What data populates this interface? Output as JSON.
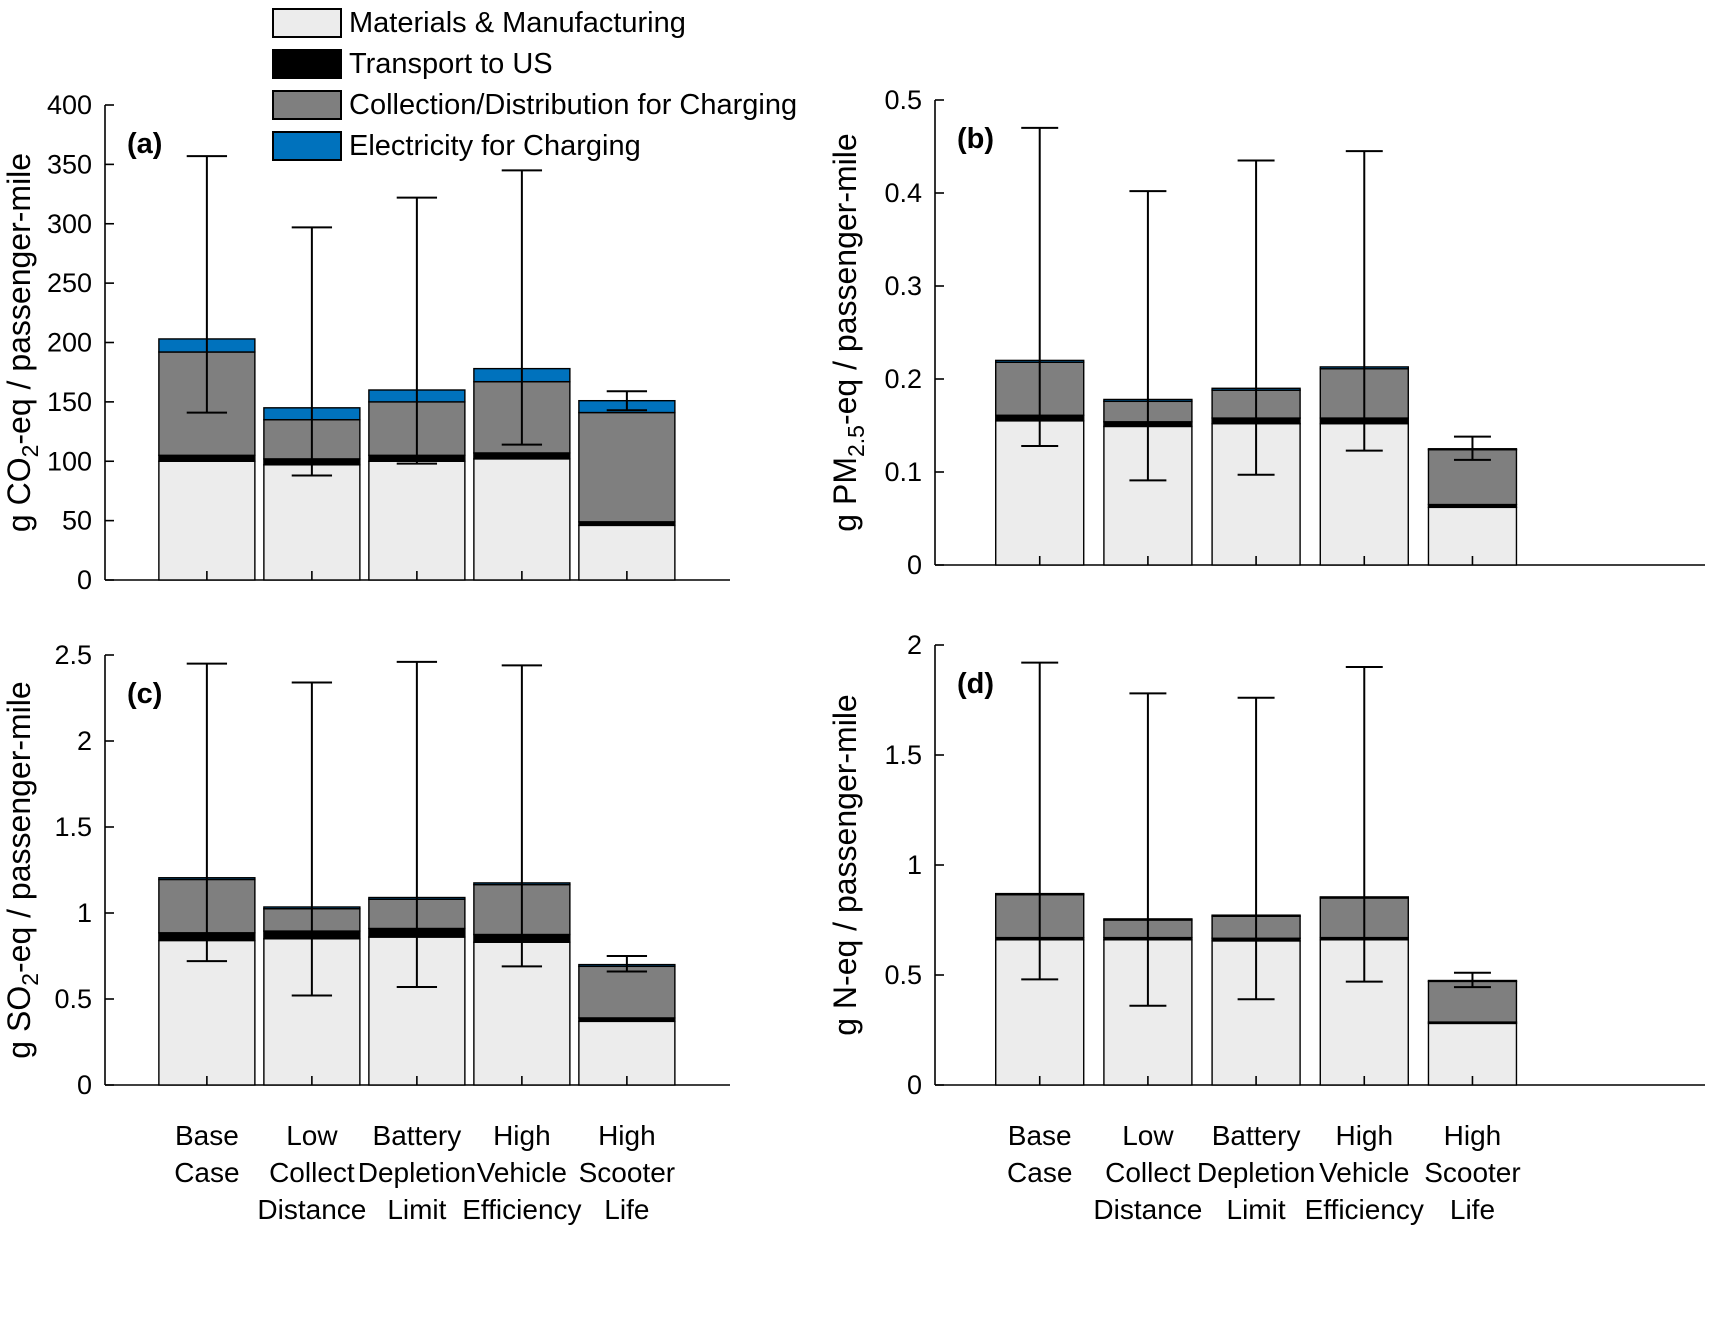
{
  "figure": {
    "background": "#ffffff",
    "axis_color": "#000000",
    "text_color": "#000000"
  },
  "legend": {
    "position": "top-left",
    "items": [
      {
        "name": "materials",
        "label": "Materials & Manufacturing",
        "color": "#ececec"
      },
      {
        "name": "transport",
        "label": "Transport to US",
        "color": "#000000"
      },
      {
        "name": "collection",
        "label": "Collection/Distribution for Charging",
        "color": "#7f7f7f"
      },
      {
        "name": "electricity",
        "label": "Electricity for Charging",
        "color": "#0072bd"
      }
    ]
  },
  "category_labels": [
    [
      "Base",
      "Case"
    ],
    [
      "Low",
      "Collect",
      "Distance"
    ],
    [
      "Battery",
      "Depletion",
      "Limit"
    ],
    [
      "High",
      "Vehicle",
      "Efficiency"
    ],
    [
      "High",
      "Scooter",
      "Life"
    ]
  ],
  "chart_data": [
    {
      "type": "bar",
      "stacked": true,
      "panel_label": "(a)",
      "ylabel_text": "g CO2-eq / passenger-mile",
      "ylabel": {
        "pre": "g CO",
        "sub": "2",
        "post": "-eq / passenger-mile"
      },
      "ylim": [
        0,
        400
      ],
      "grid": false,
      "yticks": [
        {
          "v": 0,
          "label": "0"
        },
        {
          "v": 50,
          "label": "50"
        },
        {
          "v": 100,
          "label": "100"
        },
        {
          "v": 150,
          "label": "150"
        },
        {
          "v": 200,
          "label": "200"
        },
        {
          "v": 250,
          "label": "250"
        },
        {
          "v": 300,
          "label": "300"
        },
        {
          "v": 350,
          "label": "350"
        },
        {
          "v": 400,
          "label": "400"
        }
      ],
      "categories": [
        "Base Case",
        "Low Collect Distance",
        "Battery Depletion Limit",
        "High Vehicle Efficiency",
        "High Scooter Life"
      ],
      "series": [
        {
          "name": "Materials & Manufacturing",
          "values": [
            100,
            97,
            100,
            102,
            46
          ]
        },
        {
          "name": "Transport to US",
          "values": [
            5,
            5,
            5,
            5,
            3
          ]
        },
        {
          "name": "Collection/Distribution for Charging",
          "values": [
            87,
            33,
            45,
            60,
            92
          ]
        },
        {
          "name": "Electricity for Charging",
          "values": [
            11,
            10,
            10,
            11,
            10
          ]
        }
      ],
      "totals": [
        203,
        145,
        160,
        178,
        151
      ],
      "error_bars": {
        "low": [
          141,
          88,
          98,
          114,
          143
        ],
        "high": [
          357,
          297,
          322,
          345,
          159
        ]
      }
    },
    {
      "type": "bar",
      "stacked": true,
      "panel_label": "(b)",
      "ylabel_text": "g PM2.5-eq / passenger-mile",
      "ylabel": {
        "pre": "g PM",
        "sub": "2.5",
        "post": "-eq / passenger-mile"
      },
      "ylim": [
        0,
        0.5
      ],
      "grid": false,
      "yticks": [
        {
          "v": 0,
          "label": "0"
        },
        {
          "v": 0.1,
          "label": "0.1"
        },
        {
          "v": 0.2,
          "label": "0.2"
        },
        {
          "v": 0.3,
          "label": "0.3"
        },
        {
          "v": 0.4,
          "label": "0.4"
        },
        {
          "v": 0.5,
          "label": "0.5"
        }
      ],
      "categories": [
        "Base Case",
        "Low Collect Distance",
        "Battery Depletion Limit",
        "High Vehicle Efficiency",
        "High Scooter Life"
      ],
      "series": [
        {
          "name": "Materials & Manufacturing",
          "values": [
            0.155,
            0.149,
            0.152,
            0.152,
            0.062
          ]
        },
        {
          "name": "Transport to US",
          "values": [
            0.006,
            0.005,
            0.006,
            0.006,
            0.003
          ]
        },
        {
          "name": "Collection/Distribution for Charging",
          "values": [
            0.057,
            0.022,
            0.03,
            0.053,
            0.059
          ]
        },
        {
          "name": "Electricity for Charging",
          "values": [
            0.002,
            0.002,
            0.002,
            0.002,
            0.001
          ]
        }
      ],
      "totals": [
        0.22,
        0.178,
        0.19,
        0.213,
        0.125
      ],
      "error_bars": {
        "low": [
          0.128,
          0.091,
          0.097,
          0.123,
          0.113
        ],
        "high": [
          0.47,
          0.402,
          0.435,
          0.445,
          0.138
        ]
      }
    },
    {
      "type": "bar",
      "stacked": true,
      "panel_label": "(c)",
      "ylabel_text": "g SO2-eq / passenger-mile",
      "ylabel": {
        "pre": "g SO",
        "sub": "2",
        "post": "-eq / passenger-mile"
      },
      "ylim": [
        0,
        2.5
      ],
      "grid": false,
      "yticks": [
        {
          "v": 0,
          "label": "0"
        },
        {
          "v": 0.5,
          "label": "0.5"
        },
        {
          "v": 1,
          "label": "1"
        },
        {
          "v": 1.5,
          "label": "1.5"
        },
        {
          "v": 2,
          "label": "2"
        },
        {
          "v": 2.5,
          "label": "2.5"
        }
      ],
      "categories": [
        "Base Case",
        "Low Collect Distance",
        "Battery Depletion Limit",
        "High Vehicle Efficiency",
        "High Scooter Life"
      ],
      "series": [
        {
          "name": "Materials & Manufacturing",
          "values": [
            0.84,
            0.85,
            0.86,
            0.83,
            0.37
          ]
        },
        {
          "name": "Transport to US",
          "values": [
            0.045,
            0.045,
            0.05,
            0.045,
            0.02
          ]
        },
        {
          "name": "Collection/Distribution for Charging",
          "values": [
            0.31,
            0.13,
            0.17,
            0.29,
            0.3
          ]
        },
        {
          "name": "Electricity for Charging",
          "values": [
            0.01,
            0.01,
            0.01,
            0.01,
            0.01
          ]
        }
      ],
      "totals": [
        1.205,
        1.035,
        1.09,
        1.175,
        0.7
      ],
      "error_bars": {
        "low": [
          0.72,
          0.52,
          0.57,
          0.69,
          0.66
        ],
        "high": [
          2.45,
          2.34,
          2.46,
          2.44,
          0.75
        ]
      }
    },
    {
      "type": "bar",
      "stacked": true,
      "panel_label": "(d)",
      "ylabel_text": "g N-eq / passenger-mile",
      "ylabel": {
        "pre": "g N-eq / passenger-mile",
        "sub": "",
        "post": ""
      },
      "ylim": [
        0,
        2
      ],
      "grid": false,
      "yticks": [
        {
          "v": 0,
          "label": "0"
        },
        {
          "v": 0.5,
          "label": "0.5"
        },
        {
          "v": 1,
          "label": "1"
        },
        {
          "v": 1.5,
          "label": "1.5"
        },
        {
          "v": 2,
          "label": "2"
        }
      ],
      "categories": [
        "Base Case",
        "Low Collect Distance",
        "Battery Depletion Limit",
        "High Vehicle Efficiency",
        "High Scooter Life"
      ],
      "series": [
        {
          "name": "Materials & Manufacturing",
          "values": [
            0.66,
            0.66,
            0.655,
            0.66,
            0.28
          ]
        },
        {
          "name": "Transport to US",
          "values": [
            0.01,
            0.01,
            0.012,
            0.01,
            0.006
          ]
        },
        {
          "name": "Collection/Distribution for Charging",
          "values": [
            0.195,
            0.08,
            0.1,
            0.18,
            0.185
          ]
        },
        {
          "name": "Electricity for Charging",
          "values": [
            0.005,
            0.005,
            0.005,
            0.005,
            0.004
          ]
        }
      ],
      "totals": [
        0.87,
        0.755,
        0.772,
        0.855,
        0.475
      ],
      "error_bars": {
        "low": [
          0.48,
          0.36,
          0.39,
          0.47,
          0.445
        ],
        "high": [
          1.92,
          1.78,
          1.76,
          1.9,
          0.51
        ]
      }
    }
  ]
}
